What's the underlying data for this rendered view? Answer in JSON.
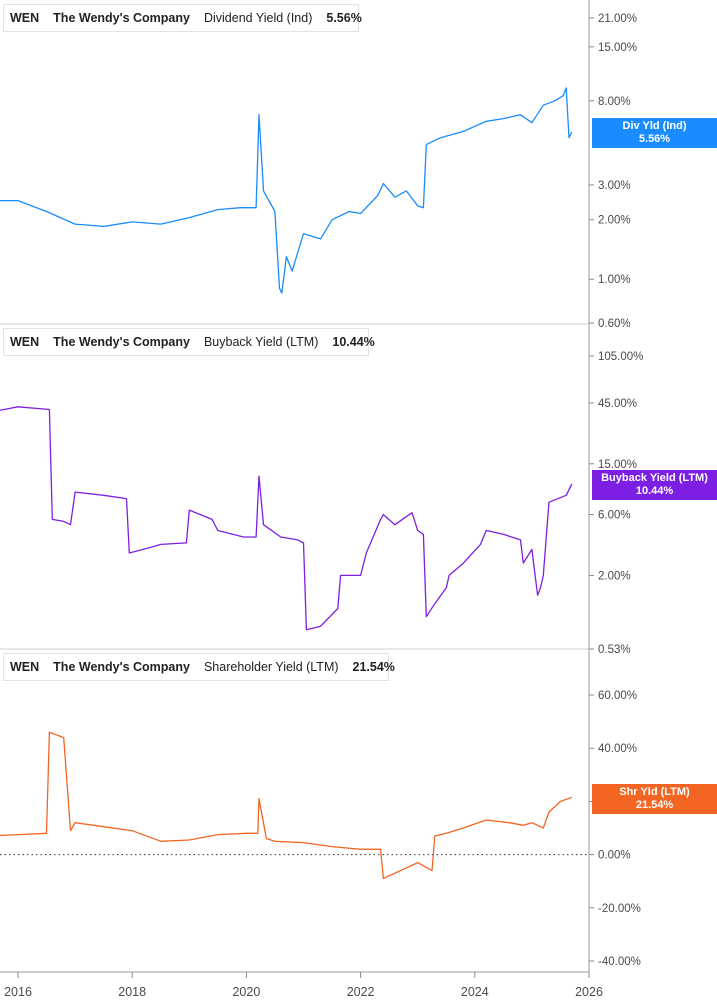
{
  "chart_data": [
    {
      "type": "line",
      "ticker": "WEN",
      "company": "The Wendy's Company",
      "metric": "Dividend Yield (Ind)",
      "current_value": "5.56%",
      "tag": {
        "label": "Div Yld (Ind)",
        "value": "5.56%"
      },
      "color": "#1a8cff",
      "y_scale": "log",
      "yticks": [
        "21.00%",
        "15.00%",
        "8.00%",
        "3.00%",
        "2.00%",
        "1.00%",
        "0.60%"
      ],
      "ytick_values": [
        21,
        15,
        8,
        3,
        2,
        1,
        0.6
      ],
      "series": [
        {
          "x": [
            2015.0,
            2015.5,
            2016.0,
            2016.5,
            2017.0,
            2017.5,
            2018.0,
            2018.5,
            2019.0,
            2019.5,
            2019.9,
            2020.17,
            2020.22,
            2020.3,
            2020.5,
            2020.58,
            2020.62,
            2020.7,
            2020.8,
            2021.0,
            2021.3,
            2021.5,
            2021.8,
            2022.0,
            2022.3,
            2022.4,
            2022.6,
            2022.8,
            2023.0,
            2023.1,
            2023.15,
            2023.4,
            2023.8,
            2024.2,
            2024.5,
            2024.8,
            2025.0,
            2025.2,
            2025.4,
            2025.55,
            2025.6,
            2025.65,
            2025.7
          ],
          "values": [
            2.55,
            2.5,
            2.5,
            2.2,
            1.9,
            1.85,
            1.95,
            1.9,
            2.05,
            2.25,
            2.3,
            2.3,
            6.8,
            2.8,
            2.2,
            0.9,
            0.85,
            1.3,
            1.1,
            1.7,
            1.6,
            2.0,
            2.2,
            2.15,
            2.65,
            3.05,
            2.6,
            2.8,
            2.35,
            2.3,
            4.8,
            5.2,
            5.6,
            6.3,
            6.5,
            6.8,
            6.2,
            7.6,
            8.0,
            8.5,
            9.3,
            5.2,
            5.56
          ]
        }
      ]
    },
    {
      "type": "line",
      "ticker": "WEN",
      "company": "The Wendy's Company",
      "metric": "Buyback Yield (LTM)",
      "current_value": "10.44%",
      "tag": {
        "label": "Buyback Yield (LTM)",
        "value": "10.44%"
      },
      "color": "#7d1fe3",
      "y_scale": "log",
      "yticks": [
        "105.00%",
        "45.00%",
        "15.00%",
        "6.00%",
        "2.00%",
        "0.53%"
      ],
      "ytick_values": [
        105,
        45,
        15,
        6,
        2,
        0.53
      ],
      "series": [
        {
          "x": [
            2015.0,
            2015.05,
            2015.1,
            2015.5,
            2016.0,
            2016.55,
            2016.6,
            2016.8,
            2016.92,
            2017.0,
            2017.5,
            2017.9,
            2017.95,
            2018.3,
            2018.5,
            2018.95,
            2019.0,
            2019.4,
            2019.5,
            2019.95,
            2020.17,
            2020.22,
            2020.3,
            2020.6,
            2020.9,
            2021.0,
            2021.05,
            2021.3,
            2021.6,
            2021.65,
            2022.0,
            2022.1,
            2022.35,
            2022.4,
            2022.6,
            2022.9,
            2023.0,
            2023.1,
            2023.15,
            2023.3,
            2023.5,
            2023.55,
            2023.8,
            2024.1,
            2024.2,
            2024.5,
            2024.8,
            2024.85,
            2025.0,
            2025.1,
            2025.15,
            2025.2,
            2025.3,
            2025.6,
            2025.7
          ],
          "values": [
            2.4,
            2.6,
            40.0,
            38.0,
            42.0,
            40.0,
            5.5,
            5.3,
            5.0,
            9.0,
            8.5,
            8.0,
            3.0,
            3.3,
            3.5,
            3.6,
            6.5,
            5.5,
            4.5,
            4.0,
            4.0,
            12.0,
            5.0,
            4.0,
            3.8,
            3.6,
            0.75,
            0.8,
            1.1,
            2.0,
            2.0,
            3.0,
            5.5,
            6.0,
            5.0,
            6.2,
            4.5,
            4.2,
            0.95,
            1.2,
            1.6,
            2.0,
            2.5,
            3.5,
            4.5,
            4.2,
            3.8,
            2.5,
            3.2,
            1.4,
            1.6,
            2.0,
            7.5,
            8.5,
            10.44
          ]
        }
      ]
    },
    {
      "type": "line",
      "ticker": "WEN",
      "company": "The Wendy's Company",
      "metric": "Shareholder Yield (LTM)",
      "current_value": "21.54%",
      "tag": {
        "label": "Shr Yld (LTM)",
        "value": "21.54%"
      },
      "color": "#f26522",
      "y_scale": "linear",
      "ylim": [
        -40,
        60
      ],
      "yticks": [
        "60.00%",
        "40.00%",
        "20.00%",
        "0.00%",
        "-20.00%",
        "-40.00%"
      ],
      "ytick_values": [
        60,
        40,
        20,
        0,
        -20,
        -40
      ],
      "series": [
        {
          "x": [
            2015.0,
            2015.05,
            2015.1,
            2015.5,
            2016.0,
            2016.5,
            2016.55,
            2016.8,
            2016.92,
            2017.0,
            2017.5,
            2018.0,
            2018.5,
            2019.0,
            2019.5,
            2020.0,
            2020.2,
            2020.22,
            2020.35,
            2020.5,
            2021.0,
            2021.5,
            2022.0,
            2022.35,
            2022.4,
            2022.6,
            2023.0,
            2023.25,
            2023.3,
            2023.5,
            2023.8,
            2024.2,
            2024.6,
            2024.85,
            2025.0,
            2025.2,
            2025.3,
            2025.5,
            2025.7
          ],
          "values": [
            -32.0,
            -33.0,
            6.0,
            7.0,
            7.5,
            8.0,
            46.0,
            44.0,
            9.0,
            12.0,
            10.5,
            9.0,
            5.0,
            5.5,
            7.5,
            8.0,
            8.0,
            21.0,
            6.0,
            5.0,
            4.5,
            3.0,
            2.0,
            2.0,
            -9.0,
            -7.0,
            -3.0,
            -6.0,
            7.0,
            8.0,
            10.0,
            13.0,
            12.0,
            11.0,
            12.0,
            10.0,
            16.0,
            20.0,
            21.54
          ]
        }
      ]
    }
  ],
  "xaxis": {
    "labels": [
      "2016",
      "2018",
      "2020",
      "2022",
      "2024",
      "2026"
    ],
    "values": [
      2016,
      2018,
      2020,
      2022,
      2024,
      2026
    ]
  }
}
